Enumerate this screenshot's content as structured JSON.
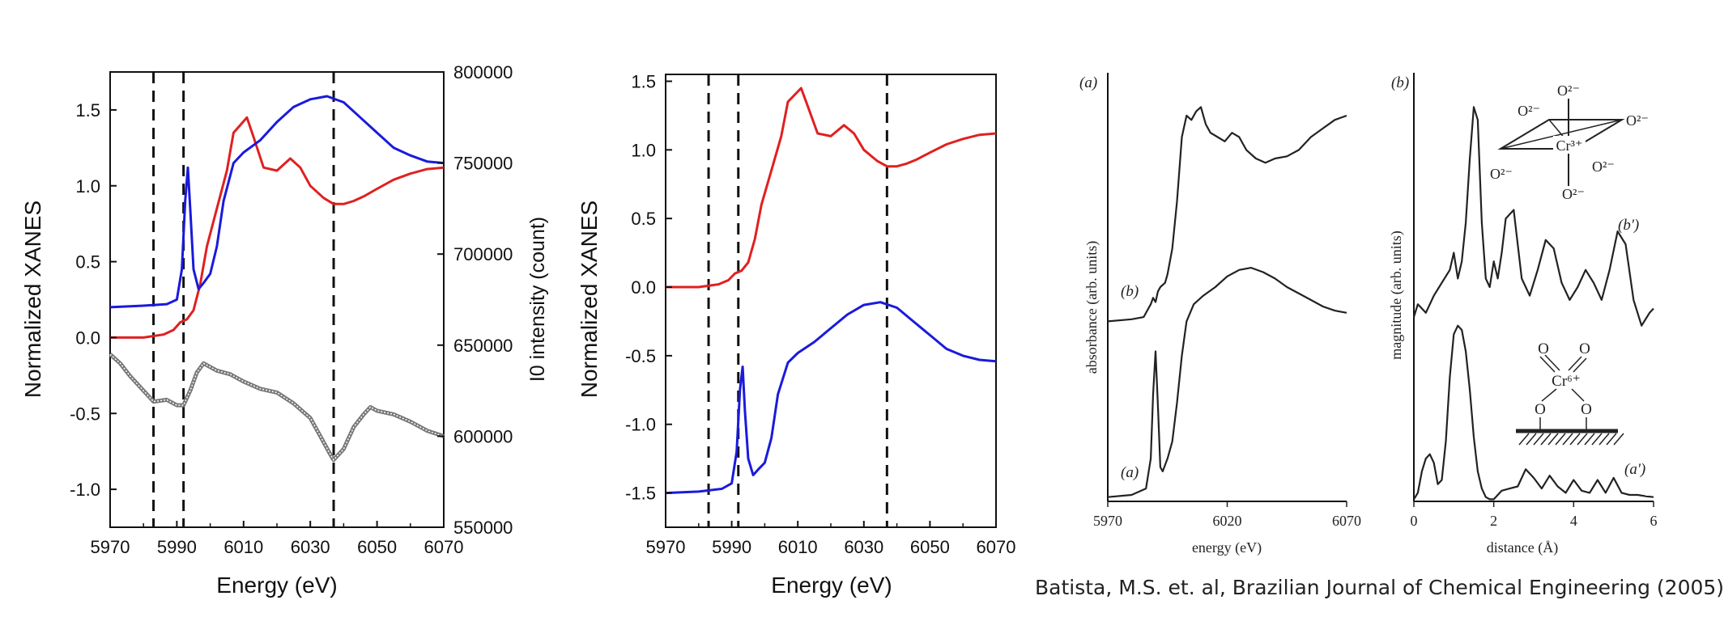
{
  "colors": {
    "red": "#e02020",
    "blue": "#1a1adc",
    "gray": "#777777",
    "black": "#111111"
  },
  "chart_data": [
    {
      "type": "line",
      "title": "",
      "xlabel": "Energy (eV)",
      "ylabel": "Normalized XANES",
      "y2label": "I0 intensity (count)",
      "xlim": [
        5970,
        6070
      ],
      "ylim": [
        -1.25,
        1.75
      ],
      "y2lim": [
        550000,
        800000
      ],
      "xticks": [
        "5970",
        "5990",
        "6010",
        "6030",
        "6050",
        "6070"
      ],
      "yticks": [
        "1.5",
        "1.0",
        "0.5",
        "0.0",
        "-0.5",
        "-1.0"
      ],
      "y2ticks": [
        "800000",
        "750000",
        "700000",
        "650000",
        "600000",
        "550000"
      ],
      "vlines": [
        5983,
        5992,
        6037
      ],
      "series": [
        {
          "name": "red",
          "x": [
            5970,
            5980,
            5986,
            5989,
            5991,
            5993,
            5995,
            5997,
            5999,
            6002,
            6005,
            6007,
            6009,
            6011,
            6013,
            6016,
            6020,
            6024,
            6027,
            6030,
            6034,
            6037,
            6040,
            6043,
            6046,
            6050,
            6055,
            6060,
            6065,
            6070
          ],
          "y": [
            0.0,
            0.0,
            0.02,
            0.05,
            0.1,
            0.12,
            0.18,
            0.35,
            0.6,
            0.85,
            1.1,
            1.35,
            1.4,
            1.45,
            1.32,
            1.12,
            1.1,
            1.18,
            1.12,
            1.0,
            0.92,
            0.88,
            0.88,
            0.9,
            0.93,
            0.98,
            1.04,
            1.08,
            1.11,
            1.12
          ]
        },
        {
          "name": "blue",
          "x": [
            5970,
            5980,
            5987,
            5990,
            5991.5,
            5992.5,
            5993.3,
            5994,
            5995,
            5996.5,
            5998,
            6000,
            6002,
            6004,
            6007,
            6010,
            6015,
            6020,
            6025,
            6030,
            6035,
            6040,
            6045,
            6050,
            6055,
            6060,
            6065,
            6070
          ],
          "y": [
            0.2,
            0.21,
            0.22,
            0.25,
            0.45,
            0.9,
            1.12,
            0.85,
            0.45,
            0.32,
            0.36,
            0.42,
            0.6,
            0.9,
            1.15,
            1.22,
            1.3,
            1.42,
            1.52,
            1.57,
            1.59,
            1.55,
            1.45,
            1.35,
            1.25,
            1.2,
            1.16,
            1.15
          ]
        },
        {
          "name": "I0",
          "axis": "y2",
          "x": [
            5970,
            5973,
            5976,
            5980,
            5983,
            5987,
            5990,
            5992,
            5994,
            5996,
            5998,
            6002,
            6006,
            6010,
            6015,
            6020,
            6025,
            6030,
            6033,
            6036,
            6037,
            6040,
            6043,
            6046,
            6048,
            6050,
            6055,
            6060,
            6065,
            6070
          ],
          "y": [
            645000,
            640000,
            633000,
            625000,
            619000,
            620000,
            617000,
            617000,
            625000,
            635000,
            640000,
            636000,
            634000,
            630000,
            626000,
            624000,
            618000,
            610000,
            600000,
            590000,
            587000,
            593000,
            605000,
            612000,
            616000,
            614000,
            612000,
            608000,
            603000,
            600000
          ]
        }
      ]
    },
    {
      "type": "line",
      "title": "",
      "xlabel": "Energy (eV)",
      "ylabel": "Normalized XANES",
      "xlim": [
        5970,
        6070
      ],
      "ylim": [
        -1.75,
        1.55
      ],
      "xticks": [
        "5970",
        "5990",
        "6010",
        "6030",
        "6050",
        "6070"
      ],
      "yticks": [
        "1.5",
        "1.0",
        "0.5",
        "0.0",
        "-0.5",
        "-1.0",
        "-1.5"
      ],
      "vlines": [
        5983,
        5992,
        6037
      ],
      "series": [
        {
          "name": "red",
          "x": [
            5970,
            5980,
            5986,
            5989,
            5991,
            5993,
            5995,
            5997,
            5999,
            6002,
            6005,
            6007,
            6009,
            6011,
            6013,
            6016,
            6020,
            6024,
            6027,
            6030,
            6034,
            6037,
            6040,
            6043,
            6046,
            6050,
            6055,
            6060,
            6065,
            6070
          ],
          "y": [
            0.0,
            0.0,
            0.02,
            0.05,
            0.1,
            0.12,
            0.18,
            0.35,
            0.6,
            0.85,
            1.1,
            1.35,
            1.4,
            1.45,
            1.32,
            1.12,
            1.1,
            1.18,
            1.12,
            1.0,
            0.92,
            0.88,
            0.88,
            0.9,
            0.93,
            0.98,
            1.04,
            1.08,
            1.11,
            1.12
          ]
        },
        {
          "name": "blue",
          "x": [
            5970,
            5980,
            5987,
            5990,
            5991.5,
            5992.5,
            5993.3,
            5994,
            5995,
            5996.5,
            5998,
            6000,
            6002,
            6004,
            6007,
            6010,
            6015,
            6020,
            6025,
            6030,
            6035,
            6040,
            6045,
            6050,
            6055,
            6060,
            6065,
            6070
          ],
          "y": [
            -1.5,
            -1.49,
            -1.47,
            -1.43,
            -1.2,
            -0.75,
            -0.58,
            -0.9,
            -1.25,
            -1.37,
            -1.33,
            -1.28,
            -1.1,
            -0.78,
            -0.55,
            -0.48,
            -0.4,
            -0.3,
            -0.2,
            -0.13,
            -0.11,
            -0.15,
            -0.25,
            -0.35,
            -0.45,
            -0.5,
            -0.53,
            -0.54
          ]
        }
      ]
    },
    {
      "type": "line",
      "title": "",
      "panel_label": "(a)",
      "xlabel": "energy (eV)",
      "ylabel": "absorbance  (arb. units)",
      "xlim": [
        5970,
        6070
      ],
      "ylim": [
        0,
        10
      ],
      "xticks": [
        "5970",
        "6020",
        "6070"
      ],
      "series": [
        {
          "name": "(b)",
          "x": [
            5970,
            5980,
            5985,
            5988,
            5989,
            5990,
            5991,
            5992,
            5994,
            5995,
            5997,
            5999,
            6001,
            6003,
            6005,
            6007,
            6009,
            6011,
            6013,
            6016,
            6019,
            6022,
            6025,
            6028,
            6032,
            6036,
            6040,
            6045,
            6050,
            6055,
            6060,
            6065,
            6070
          ],
          "y": [
            4.2,
            4.25,
            4.3,
            4.6,
            4.75,
            4.65,
            4.9,
            5.0,
            5.1,
            5.3,
            5.9,
            7.0,
            8.5,
            9.0,
            8.9,
            9.1,
            9.2,
            8.8,
            8.6,
            8.5,
            8.4,
            8.6,
            8.5,
            8.2,
            8.0,
            7.9,
            8.0,
            8.05,
            8.2,
            8.5,
            8.7,
            8.9,
            9.0
          ]
        },
        {
          "name": "(a)",
          "x": [
            5970,
            5980,
            5986,
            5988,
            5989,
            5990,
            5991,
            5992,
            5993,
            5995,
            5997,
            5999,
            6001,
            6003,
            6006,
            6010,
            6015,
            6020,
            6025,
            6030,
            6035,
            6040,
            6045,
            6050,
            6055,
            6060,
            6065,
            6070
          ],
          "y": [
            0.1,
            0.15,
            0.3,
            1.0,
            2.5,
            3.5,
            2.2,
            0.8,
            0.7,
            1.0,
            1.4,
            2.3,
            3.4,
            4.2,
            4.6,
            4.8,
            5.0,
            5.25,
            5.4,
            5.45,
            5.35,
            5.2,
            5.0,
            4.85,
            4.7,
            4.55,
            4.45,
            4.4
          ]
        }
      ]
    },
    {
      "type": "line",
      "title": "",
      "panel_label": "(b)",
      "xlabel": "distance (Å)",
      "ylabel": "magnitude  (arb. units)",
      "xlim": [
        0,
        6
      ],
      "ylim": [
        0,
        10
      ],
      "xticks": [
        "0",
        "2",
        "4",
        "6"
      ],
      "series": [
        {
          "name": "(b')",
          "x": [
            0,
            0.1,
            0.2,
            0.3,
            0.5,
            0.7,
            0.9,
            1.0,
            1.1,
            1.2,
            1.3,
            1.4,
            1.5,
            1.6,
            1.7,
            1.8,
            1.9,
            2.0,
            2.1,
            2.2,
            2.3,
            2.5,
            2.7,
            2.9,
            3.1,
            3.3,
            3.5,
            3.7,
            3.9,
            4.1,
            4.3,
            4.5,
            4.7,
            4.9,
            5.1,
            5.3,
            5.5,
            5.7,
            5.9,
            6.0
          ],
          "y": [
            4.3,
            4.6,
            4.5,
            4.4,
            4.8,
            5.1,
            5.4,
            5.8,
            5.2,
            5.6,
            6.5,
            8.0,
            9.2,
            8.9,
            6.5,
            5.2,
            5.0,
            5.6,
            5.2,
            5.8,
            6.6,
            6.8,
            5.2,
            4.8,
            5.4,
            6.1,
            5.9,
            5.1,
            4.7,
            5.0,
            5.4,
            5.1,
            4.7,
            5.4,
            6.3,
            6.0,
            4.7,
            4.1,
            4.4,
            4.5
          ]
        },
        {
          "name": "(a')",
          "x": [
            0,
            0.1,
            0.2,
            0.3,
            0.4,
            0.5,
            0.6,
            0.7,
            0.8,
            0.9,
            1.0,
            1.1,
            1.2,
            1.3,
            1.4,
            1.5,
            1.6,
            1.7,
            1.8,
            1.9,
            2.0,
            2.2,
            2.4,
            2.6,
            2.8,
            3.0,
            3.2,
            3.4,
            3.6,
            3.8,
            4.0,
            4.2,
            4.4,
            4.6,
            4.8,
            5.0,
            5.2,
            5.4,
            5.6,
            5.8,
            6.0
          ],
          "y": [
            0.05,
            0.2,
            0.7,
            1.0,
            1.1,
            0.9,
            0.4,
            0.5,
            1.4,
            2.9,
            3.9,
            4.1,
            4.0,
            3.5,
            2.6,
            1.5,
            0.7,
            0.3,
            0.1,
            0.05,
            0.05,
            0.25,
            0.3,
            0.35,
            0.75,
            0.55,
            0.3,
            0.6,
            0.35,
            0.2,
            0.5,
            0.25,
            0.2,
            0.5,
            0.2,
            0.55,
            0.2,
            0.15,
            0.15,
            0.12,
            0.1
          ]
        }
      ]
    }
  ],
  "insets": {
    "octahedral": {
      "top": "O²⁻",
      "upper_left": "O²⁻",
      "right": "O²⁻",
      "lower_left": "O²⁻",
      "lower_right": "O²⁻",
      "bottom": "O²⁻",
      "center": "Cr³⁺"
    },
    "tetrahedral": {
      "o_left": "O",
      "o_right": "O",
      "center": "Cr⁶⁺",
      "o_bottom_left": "O",
      "o_bottom_right": "O"
    }
  },
  "citation": "Batista, M.S. et. al, Brazilian Journal of Chemical Engineering (2005)"
}
